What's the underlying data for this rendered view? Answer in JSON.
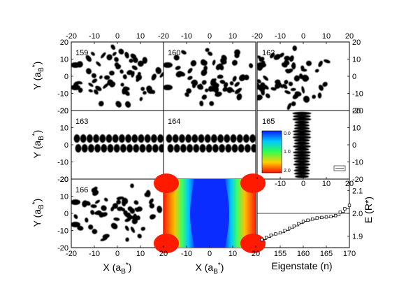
{
  "figure": {
    "panels": [
      {
        "id": "p159",
        "label": "159"
      },
      {
        "id": "p160",
        "label": "160"
      },
      {
        "id": "p162",
        "label": "162"
      },
      {
        "id": "p163",
        "label": "163"
      },
      {
        "id": "p164",
        "label": "164"
      },
      {
        "id": "p165",
        "label": "165"
      },
      {
        "id": "p166",
        "label": "166"
      }
    ],
    "axes": {
      "x_label_main": "X (a",
      "x_label_sub": "B",
      "x_label_sup": "*",
      "x_label_close": ")",
      "y_label_main": "Y (a",
      "y_label_sub": "B",
      "y_label_sup": "*",
      "y_label_close": ")",
      "xy_ticks": [
        "-20",
        "-10",
        "0",
        "10",
        "20"
      ],
      "colorbar_ticks": [
        "0.0",
        "1.0",
        "2.0"
      ],
      "eigen_xlabel": "Eigenstate (n)",
      "eigen_ylabel": "E (R*)",
      "eigen_xticks": [
        "155",
        "160",
        "165",
        "170"
      ],
      "eigen_yticks": [
        "1.9",
        "2.0",
        "2.1"
      ]
    },
    "colors": {
      "potential_low": "#0a2cff",
      "potential_high": "#ff1a00"
    }
  },
  "chart_data": {
    "type": "line",
    "title": "",
    "xlabel": "Eigenstate (n)",
    "ylabel": "E (R*)",
    "xlim": [
      150,
      170
    ],
    "ylim": [
      1.85,
      2.15
    ],
    "reference_level": 2.0,
    "x": [
      151,
      152,
      153,
      154,
      155,
      156,
      157,
      158,
      159,
      160,
      161,
      162,
      163,
      164,
      165,
      166,
      167,
      168,
      169,
      170
    ],
    "series": [
      {
        "values": [
          1.885,
          1.895,
          1.905,
          1.91,
          1.915,
          1.925,
          1.935,
          1.945,
          1.955,
          1.965,
          1.97,
          1.975,
          1.98,
          1.982,
          1.984,
          1.986,
          1.99,
          2.005,
          2.02,
          2.035
        ]
      }
    ]
  }
}
